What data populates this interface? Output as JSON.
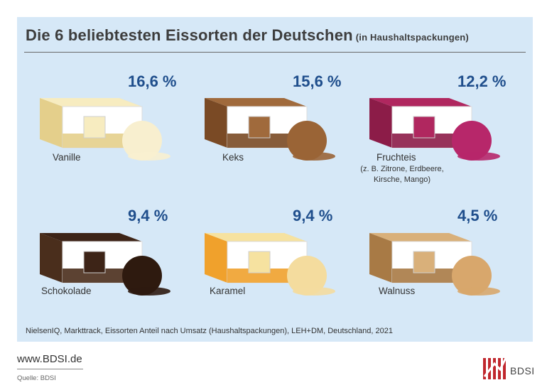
{
  "title": "Die 6 beliebtesten Eissorten der Deutschen",
  "subtitle": "(in Haushaltspackungen)",
  "chart_data": {
    "type": "bar",
    "title": "Die 6 beliebtesten Eissorten der Deutschen (in Haushaltspackungen)",
    "categories": [
      "Vanille",
      "Keks",
      "Fruchteis",
      "Schokolade",
      "Karamel",
      "Walnuss"
    ],
    "values": [
      16.6,
      15.6,
      12.2,
      9.4,
      9.4,
      4.5
    ],
    "unit": "%"
  },
  "items": [
    {
      "label": "Vanille",
      "value_text": "16,6 %",
      "note": "",
      "colors": {
        "fill": "#f7ecc0",
        "ball": "#f8efcf",
        "base": "#e4cf8b"
      }
    },
    {
      "label": "Keks",
      "value_text": "15,6 %",
      "note": "",
      "colors": {
        "fill": "#a06a3c",
        "ball": "#9a6436",
        "base": "#7a4a25"
      }
    },
    {
      "label": "Fruchteis",
      "value_text": "12,2 %",
      "note": "(z. B. Zitrone, Erdbeere, Kirsche, Mango)",
      "colors": {
        "fill": "#b0275f",
        "ball": "#b7276a",
        "base": "#8c1c48"
      }
    },
    {
      "label": "Schokolade",
      "value_text": "9,4 %",
      "note": "",
      "colors": {
        "fill": "#3d2417",
        "ball": "#2e1a0f",
        "base": "#4a2e1c"
      }
    },
    {
      "label": "Karamel",
      "value_text": "9,4 %",
      "note": "",
      "colors": {
        "fill": "#f6e2a0",
        "ball": "#f4dc9e",
        "base": "#f0a12c"
      }
    },
    {
      "label": "Walnuss",
      "value_text": "4,5 %",
      "note": "",
      "colors": {
        "fill": "#d9b07a",
        "ball": "#d8a76c",
        "base": "#a87a45"
      }
    }
  ],
  "source_text": "NielsenIQ, Markttrack, Eissorten Anteil nach Umsatz  (Haushaltspackungen), LEH+DM, Deutschland, 2021",
  "footer": {
    "url": "www.BDSI.de",
    "quelle": "Quelle: BDSI",
    "logo_text": "BDSI"
  },
  "colors": {
    "panel_bg": "#d6e8f7",
    "percent": "#1f4e8c",
    "logo_red": "#c0272d"
  }
}
